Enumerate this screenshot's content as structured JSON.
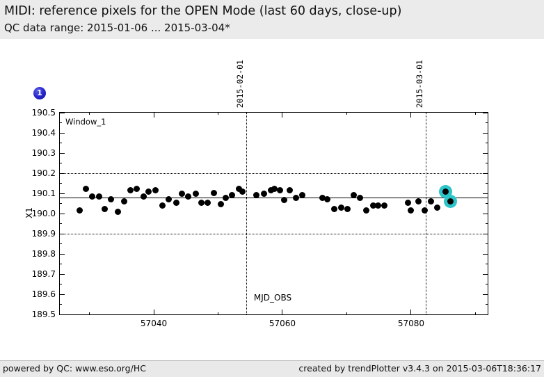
{
  "header": {
    "title": "MIDI: reference pixels for the OPEN Mode (last 60 days, close-up)",
    "subtitle": "QC data range: 2015-01-06 ... 2015-03-04*"
  },
  "marker": {
    "label": "1",
    "color": "#2424c8"
  },
  "footer": {
    "left": "powered by QC: www.eso.org/HC",
    "right": "created by trendPlotter v3.4.3 on 2015-03-06T18:36:17"
  },
  "chart_data": {
    "type": "scatter",
    "window_label": "Window_1",
    "xlabel": "MJD_OBS",
    "ylabel": "X1",
    "xlim": [
      57025.4,
      57091.9
    ],
    "ylim": [
      189.5,
      190.5
    ],
    "x_major_ticks": [
      57040,
      57060,
      57080
    ],
    "x_tick_labels": [
      "57040",
      "57060",
      "57080"
    ],
    "x_minor_ticks": [
      57030,
      57050,
      57070,
      57090
    ],
    "y_major_ticks": [
      189.5,
      189.6,
      189.7,
      189.8,
      189.9,
      190.0,
      190.1,
      190.2,
      190.3,
      190.4,
      190.5
    ],
    "y_tick_labels": [
      "189.5",
      "189.6",
      "189.7",
      "189.8",
      "189.9",
      "190.0",
      "190.1",
      "190.2",
      "190.3",
      "190.4",
      "190.5"
    ],
    "y_minor_step": 0.05,
    "grid": "dotted-threshold-lines",
    "h_dotted_lines": [
      190.2,
      189.9
    ],
    "mean_line": 190.077,
    "event_lines": [
      {
        "mjd": 57054.4,
        "label": "2015-02-01"
      },
      {
        "mjd": 57082.3,
        "label": "2015-03-01"
      }
    ],
    "point_color": "#000000",
    "highlight_color": "#2dc5c9",
    "series": [
      {
        "name": "X1",
        "points": [
          [
            57028.5,
            190.017,
            0
          ],
          [
            57029.5,
            190.121,
            0
          ],
          [
            57030.4,
            190.083,
            0
          ],
          [
            57031.5,
            190.086,
            0
          ],
          [
            57032.4,
            190.021,
            0
          ],
          [
            57033.4,
            190.072,
            0
          ],
          [
            57034.4,
            190.01,
            0
          ],
          [
            57035.4,
            190.059,
            0
          ],
          [
            57036.4,
            190.117,
            0
          ],
          [
            57037.4,
            190.121,
            0
          ],
          [
            57038.4,
            190.083,
            0
          ],
          [
            57039.2,
            190.107,
            0
          ],
          [
            57040.3,
            190.117,
            0
          ],
          [
            57041.3,
            190.038,
            0
          ],
          [
            57042.3,
            190.072,
            0
          ],
          [
            57043.5,
            190.055,
            0
          ],
          [
            57044.4,
            190.097,
            0
          ],
          [
            57045.4,
            190.083,
            0
          ],
          [
            57046.5,
            190.1,
            0
          ],
          [
            57047.4,
            190.055,
            0
          ],
          [
            57048.4,
            190.055,
            0
          ],
          [
            57049.4,
            190.103,
            0
          ],
          [
            57050.4,
            190.048,
            0
          ],
          [
            57051.2,
            190.076,
            0
          ],
          [
            57052.2,
            190.093,
            0
          ],
          [
            57053.2,
            190.121,
            0
          ],
          [
            57053.8,
            190.107,
            0
          ],
          [
            57056.0,
            190.09,
            0
          ],
          [
            57057.1,
            190.1,
            0
          ],
          [
            57058.2,
            190.114,
            0
          ],
          [
            57058.8,
            190.121,
            0
          ],
          [
            57059.6,
            190.117,
            0
          ],
          [
            57060.3,
            190.066,
            0
          ],
          [
            57061.1,
            190.117,
            0
          ],
          [
            57062.1,
            190.079,
            0
          ],
          [
            57063.1,
            190.09,
            0
          ],
          [
            57066.2,
            190.076,
            0
          ],
          [
            57067.0,
            190.069,
            0
          ],
          [
            57068.1,
            190.021,
            0
          ],
          [
            57069.1,
            190.028,
            0
          ],
          [
            57070.1,
            190.021,
            0
          ],
          [
            57071.1,
            190.09,
            0
          ],
          [
            57072.1,
            190.076,
            0
          ],
          [
            57073.0,
            190.017,
            0
          ],
          [
            57074.1,
            190.038,
            0
          ],
          [
            57074.9,
            190.041,
            0
          ],
          [
            57075.8,
            190.038,
            0
          ],
          [
            57079.5,
            190.052,
            0
          ],
          [
            57080.0,
            190.017,
            0
          ],
          [
            57081.1,
            190.059,
            0
          ],
          [
            57082.1,
            190.017,
            0
          ],
          [
            57083.1,
            190.062,
            0
          ],
          [
            57084.1,
            190.031,
            0
          ],
          [
            57085.4,
            190.107,
            1
          ],
          [
            57086.1,
            190.062,
            1
          ]
        ]
      }
    ]
  }
}
